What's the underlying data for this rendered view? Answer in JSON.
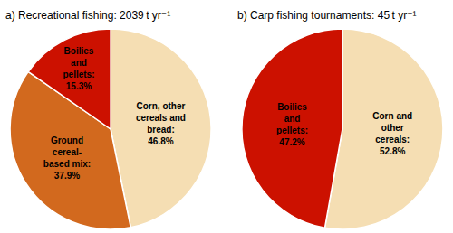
{
  "chart_data": [
    {
      "type": "pie",
      "title": "a) Recreational fishing: 2039 t yr⁻¹",
      "categories": [
        "Corn, other\ncereals and\nbread:\n46.8%",
        "Ground\ncereal-\nbased mix:\n37.9%",
        "Boilies\nand\npellets:\n15.3%"
      ],
      "values": [
        46.8,
        37.9,
        15.3
      ],
      "colors": [
        "#F5DEB3",
        "#D2691E",
        "#CC1100"
      ]
    },
    {
      "type": "pie",
      "title": "b) Carp fishing tournaments: 45 t yr⁻¹",
      "categories": [
        "Corn and\nother\ncereals:\n52.8%",
        "Boilies\nand\npellets:\n47.2%"
      ],
      "values": [
        52.8,
        47.2
      ],
      "colors": [
        "#F5DEB3",
        "#CC1100"
      ]
    }
  ]
}
